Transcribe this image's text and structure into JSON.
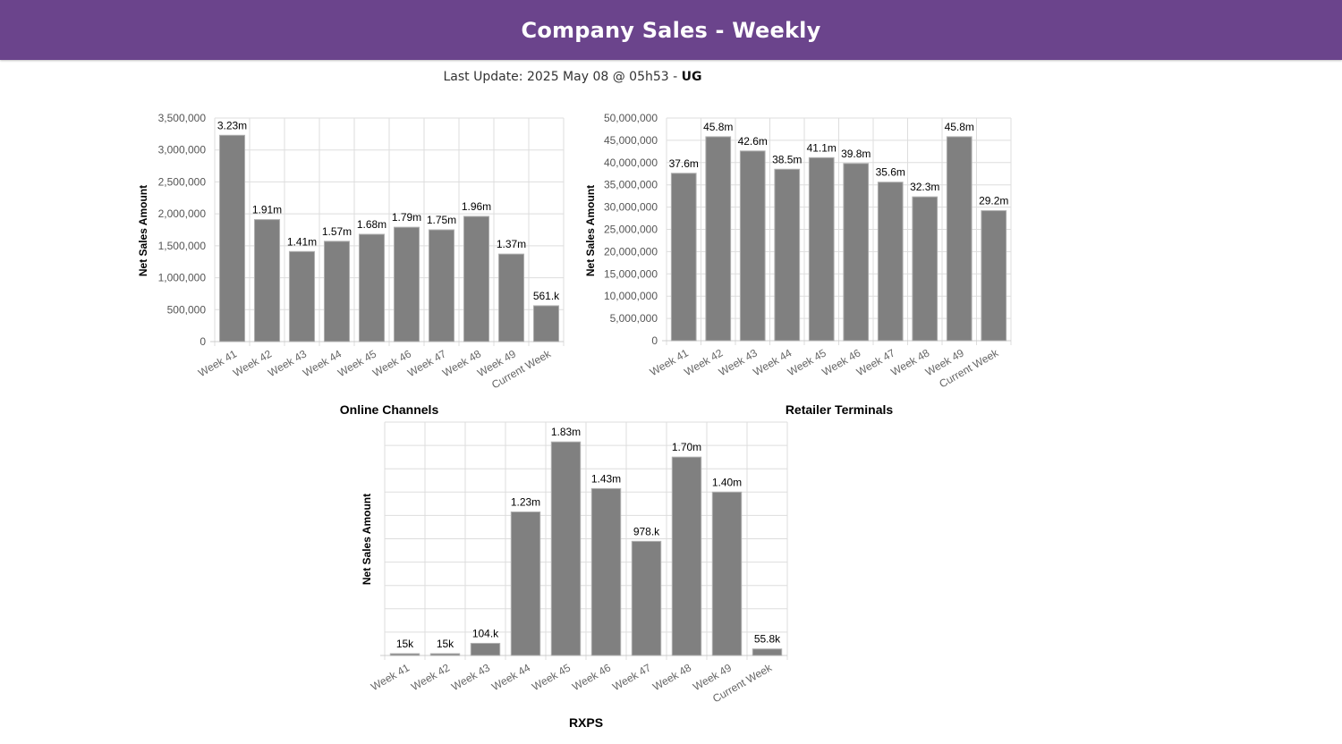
{
  "header": {
    "title": "Company Sales - Weekly"
  },
  "update": {
    "prefix": "Last Update:",
    "timestamp": "2025 May 08 @ 05h53",
    "separator": "-",
    "region": "UG"
  },
  "colors": {
    "header_bg": "#6b448c",
    "bar_fill": "#808080",
    "bar_stroke": "#b0b0b0",
    "grid": "#dddddd"
  },
  "chart_data": [
    {
      "type": "bar",
      "title": "Online Channels",
      "ylabel": "Net Sales Amount",
      "xlabel": "",
      "categories": [
        "Week 41",
        "Week 42",
        "Week 43",
        "Week 44",
        "Week 45",
        "Week 46",
        "Week 47",
        "Week 48",
        "Week 49",
        "Current Week"
      ],
      "values": [
        3230000,
        1910000,
        1410000,
        1570000,
        1680000,
        1790000,
        1750000,
        1960000,
        1370000,
        561000
      ],
      "data_labels": [
        "3.23m",
        "1.91m",
        "1.41m",
        "1.57m",
        "1.68m",
        "1.79m",
        "1.75m",
        "1.96m",
        "1.37m",
        "561.k"
      ],
      "yticks": [
        "0",
        "500,000",
        "1,000,000",
        "1,500,000",
        "2,000,000",
        "2,500,000",
        "3,000,000",
        "3,500,000"
      ],
      "ylim": [
        0,
        3500000
      ],
      "grid": true
    },
    {
      "type": "bar",
      "title": "Retailer Terminals",
      "ylabel": "Net Sales Amount",
      "xlabel": "",
      "categories": [
        "Week 41",
        "Week 42",
        "Week 43",
        "Week 44",
        "Week 45",
        "Week 46",
        "Week 47",
        "Week 48",
        "Week 49",
        "Current Week"
      ],
      "values": [
        37600000,
        45800000,
        42600000,
        38500000,
        41100000,
        39800000,
        35600000,
        32300000,
        45800000,
        29200000
      ],
      "data_labels": [
        "37.6m",
        "45.8m",
        "42.6m",
        "38.5m",
        "41.1m",
        "39.8m",
        "35.6m",
        "32.3m",
        "45.8m",
        "29.2m"
      ],
      "yticks": [
        "0",
        "5,000,000",
        "10,000,000",
        "15,000,000",
        "20,000,000",
        "25,000,000",
        "30,000,000",
        "35,000,000",
        "40,000,000",
        "45,000,000",
        "50,000,000"
      ],
      "ylim": [
        0,
        50000000
      ],
      "grid": true
    },
    {
      "type": "bar",
      "title": "RXPS",
      "ylabel": "Net Sales Amount",
      "xlabel": "",
      "categories": [
        "Week 41",
        "Week 42",
        "Week 43",
        "Week 44",
        "Week 45",
        "Week 46",
        "Week 47",
        "Week 48",
        "Week 49",
        "Current Week"
      ],
      "values": [
        15000,
        15000,
        104000,
        1230000,
        1830000,
        1430000,
        978000,
        1700000,
        1400000,
        55800
      ],
      "data_labels": [
        "15k",
        "15k",
        "104.k",
        "1.23m",
        "1.83m",
        "1.43m",
        "978.k",
        "1.70m",
        "1.40m",
        "55.8k"
      ],
      "yticks": [],
      "ylim": [
        0,
        2000000
      ],
      "grid": true
    }
  ]
}
